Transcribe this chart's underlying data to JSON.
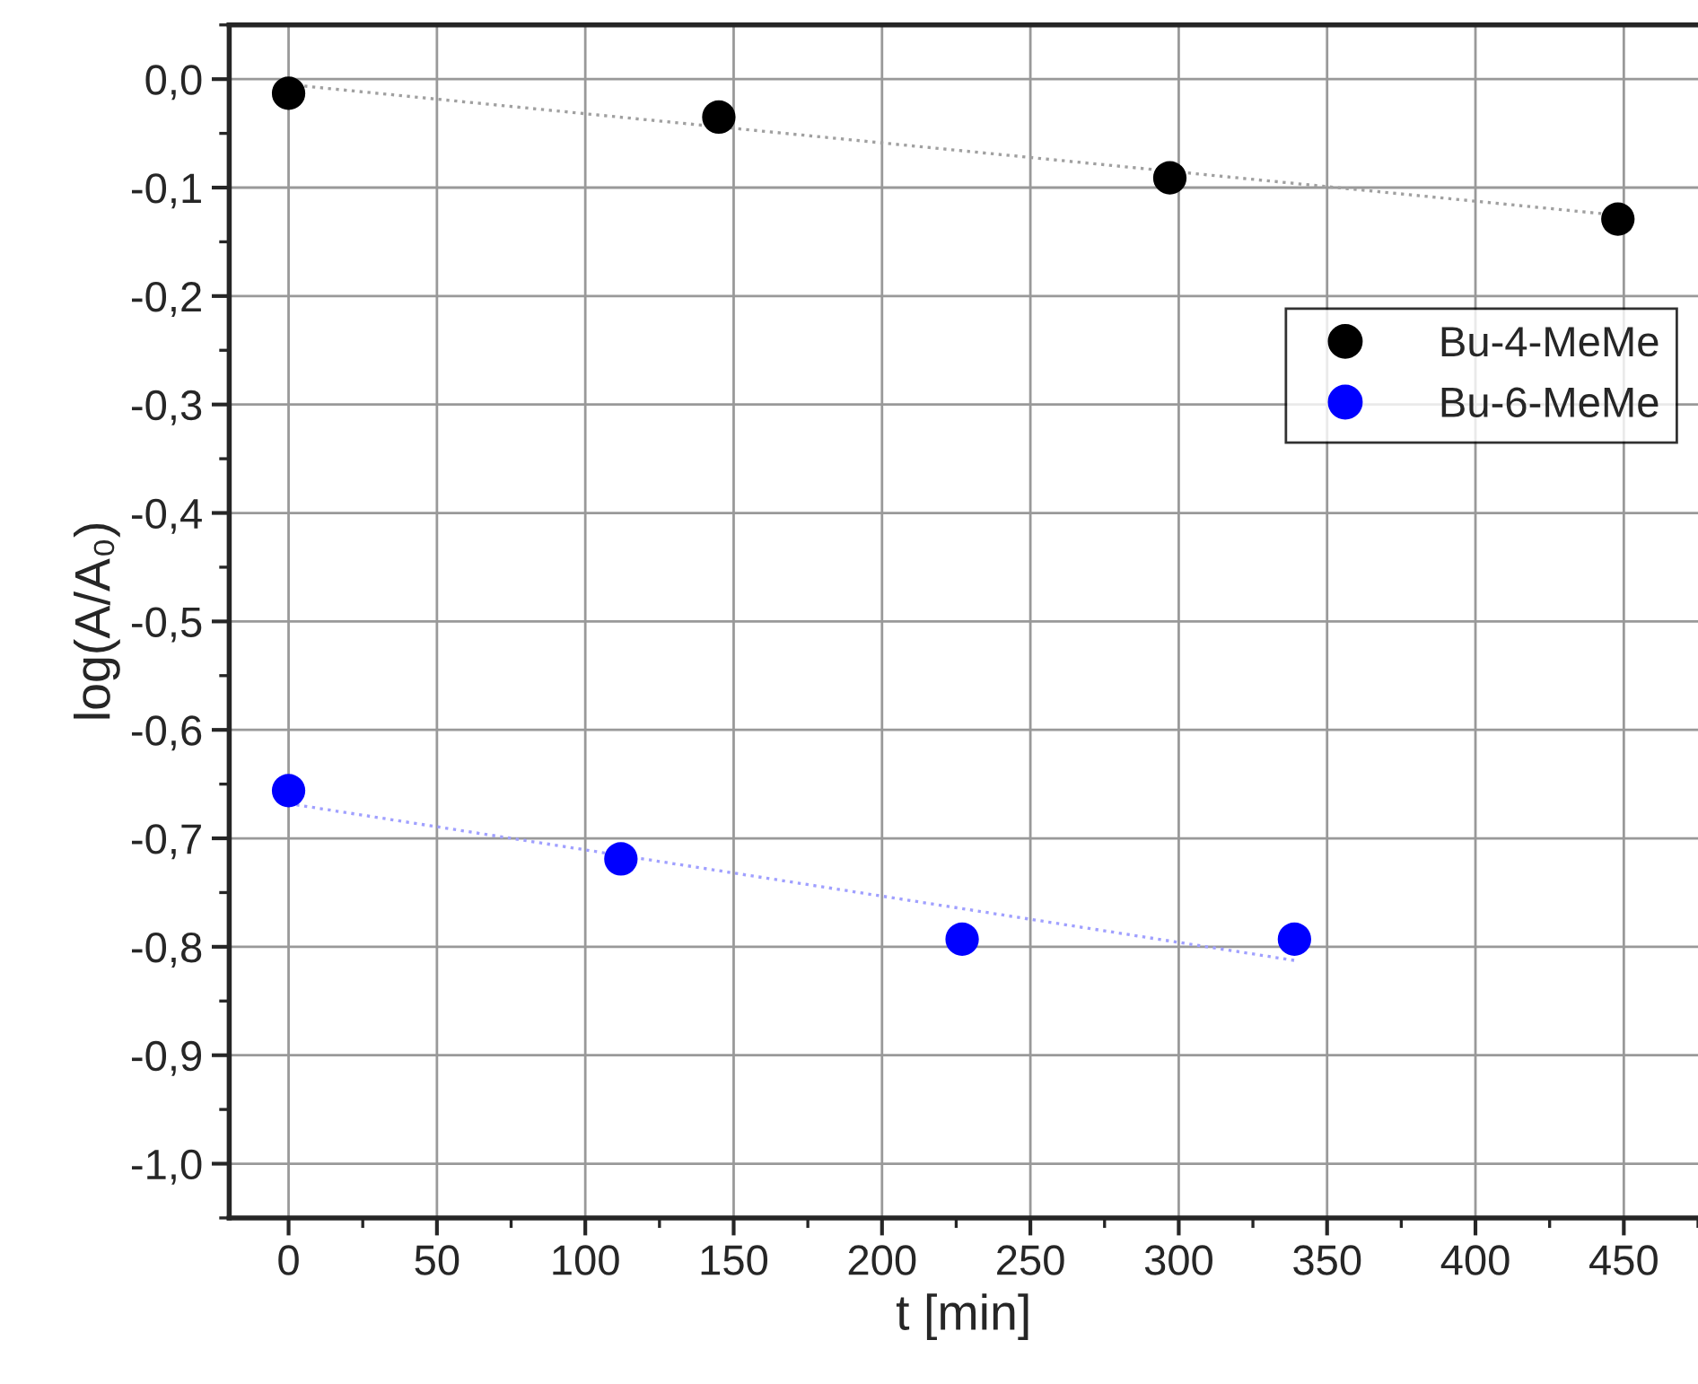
{
  "chart_data": {
    "type": "scatter",
    "xlabel": "t [min]",
    "ylabel": "log(A/A₀)",
    "series": [
      {
        "name": "Bu-4-MeMe",
        "color": "#000000",
        "x": [
          0,
          145,
          297,
          448
        ],
        "values": [
          -0.013,
          -0.035,
          -0.091,
          -0.129
        ]
      },
      {
        "name": "Bu-6-MeMe",
        "color": "#0000ff",
        "x": [
          0,
          112,
          227,
          339
        ],
        "values": [
          -0.656,
          -0.719,
          -0.793,
          -0.793
        ]
      },
      {
        "type": "line",
        "color": "#a0a0a0",
        "line_style": "dotted",
        "marker": "none",
        "x": [
          0,
          450
        ],
        "values": [
          -0.005,
          -0.126
        ]
      },
      {
        "type": "line",
        "color": "#a0a0ff",
        "line_style": "dotted",
        "marker": "none",
        "x": [
          0,
          340
        ],
        "values": [
          -0.668,
          -0.813
        ]
      }
    ],
    "xlim": [
      -20,
      475
    ],
    "xticks": [
      0,
      50,
      100,
      150,
      200,
      250,
      300,
      350,
      400,
      450
    ],
    "ylim": [
      -1.05,
      0.05
    ],
    "yticks": [
      {
        "value": 0,
        "label": "0,0"
      },
      {
        "value": -0.1,
        "label": "-0,1"
      },
      {
        "value": -0.2,
        "label": "-0,2"
      },
      {
        "value": -0.3,
        "label": "-0,3"
      },
      {
        "value": -0.4,
        "label": "-0,4"
      },
      {
        "value": -0.5,
        "label": "-0,5"
      },
      {
        "value": -0.6,
        "label": "-0,6"
      },
      {
        "value": -0.7,
        "label": "-0,7"
      },
      {
        "value": -0.8,
        "label": "-0,8"
      },
      {
        "value": -0.9,
        "label": "-0,9"
      },
      {
        "value": -1.0,
        "label": "-1,0"
      }
    ],
    "grid": true,
    "legend": "top right",
    "marker": "circle"
  }
}
